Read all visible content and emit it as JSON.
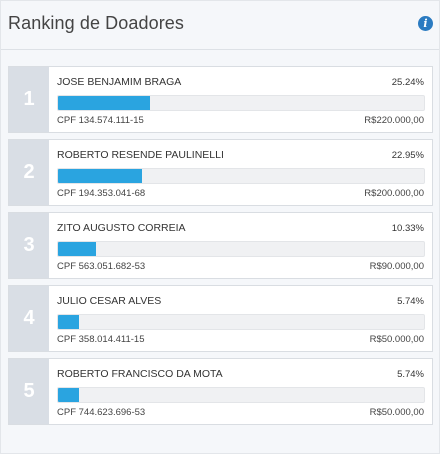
{
  "panel": {
    "title": "Ranking de Doadores",
    "info_icon": "info-circle-icon"
  },
  "donors": [
    {
      "rank": "1",
      "name": "JOSE BENJAMIM BRAGA",
      "percent_label": "25.24%",
      "percent": 25.24,
      "cpf": "CPF 134.574.111-15",
      "amount": "R$220.000,00"
    },
    {
      "rank": "2",
      "name": "ROBERTO RESENDE PAULINELLI",
      "percent_label": "22.95%",
      "percent": 22.95,
      "cpf": "CPF 194.353.041-68",
      "amount": "R$200.000,00"
    },
    {
      "rank": "3",
      "name": "ZITO AUGUSTO CORREIA",
      "percent_label": "10.33%",
      "percent": 10.33,
      "cpf": "CPF 563.051.682-53",
      "amount": "R$90.000,00"
    },
    {
      "rank": "4",
      "name": "JULIO CESAR ALVES",
      "percent_label": "5.74%",
      "percent": 5.74,
      "cpf": "CPF 358.014.411-15",
      "amount": "R$50.000,00"
    },
    {
      "rank": "5",
      "name": "ROBERTO FRANCISCO DA MOTA",
      "percent_label": "5.74%",
      "percent": 5.74,
      "cpf": "CPF 744.623.696-53",
      "amount": "R$50.000,00"
    }
  ],
  "colors": {
    "bar_fill": "#2aa4e0",
    "rank_background": "#d9dee5",
    "info_icon": "#2b7bc1"
  }
}
